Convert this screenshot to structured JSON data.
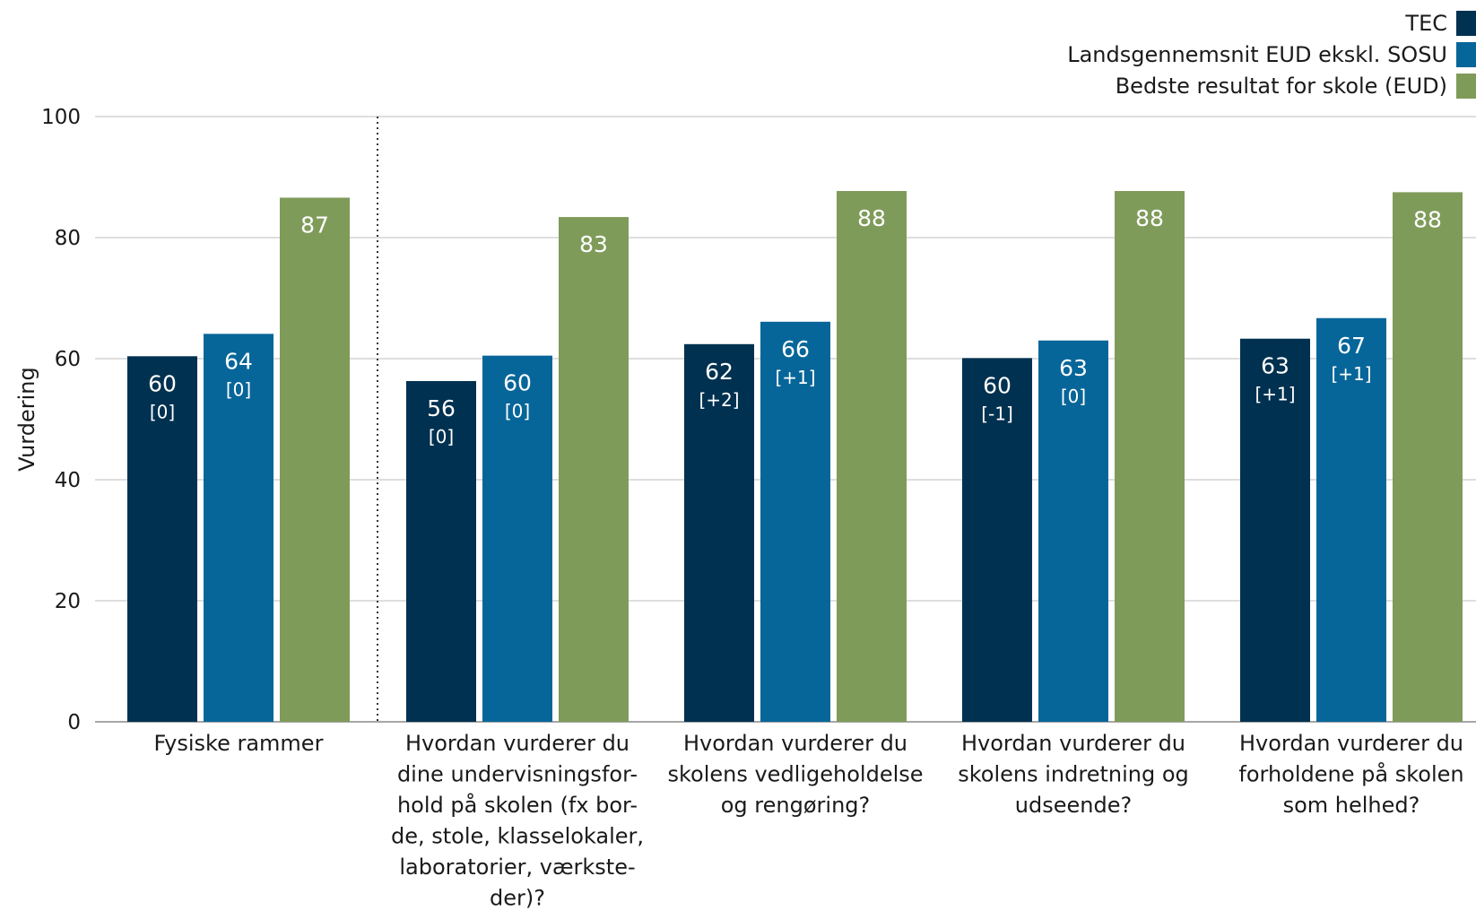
{
  "chart_data": {
    "type": "bar",
    "ylabel": "Vurdering",
    "ylim": [
      0,
      100
    ],
    "yticks": [
      0,
      20,
      40,
      60,
      80,
      100
    ],
    "grid": true,
    "legend_position": "top-right",
    "categories": [
      "Fysiske rammer",
      "Hvordan vurderer du dine undervisningsfor-hold på skolen (fx bor-de, stole, klasselokaler, laboratorier, værkste-der)?",
      "Hvordan vurderer du skolens vedligeholdelse og rengøring?",
      "Hvordan vurderer du skolens indretning og udseende?",
      "Hvordan vurderer du forholdene på skolen som helhed?"
    ],
    "category_lines": [
      [
        "Fysiske rammer"
      ],
      [
        "Hvordan vurderer du",
        "dine undervisningsfor-",
        "hold på skolen (fx bor-",
        "de, stole, klasselokaler,",
        "laboratorier, værkste-",
        "der)?"
      ],
      [
        "Hvordan vurderer du",
        "skolens vedligeholdelse",
        "og rengøring?"
      ],
      [
        "Hvordan vurderer du",
        "skolens indretning og",
        "udseende?"
      ],
      [
        "Hvordan vurderer du",
        "forholdene på skolen",
        "som helhed?"
      ]
    ],
    "series": [
      {
        "name": "TEC",
        "color": "#003150",
        "values": [
          60.4,
          56.3,
          62.4,
          60.1,
          63.3
        ],
        "labels": [
          "60",
          "56",
          "62",
          "60",
          "63"
        ],
        "changes": [
          "[0]",
          "[0]",
          "[+2]",
          "[-1]",
          "[+1]"
        ]
      },
      {
        "name": "Landsgennemsnit EUD ekskl. SOSU",
        "color": "#076699",
        "values": [
          64.1,
          60.5,
          66.1,
          63.0,
          66.7
        ],
        "labels": [
          "64",
          "60",
          "66",
          "63",
          "67"
        ],
        "changes": [
          "[0]",
          "[0]",
          "[+1]",
          "[0]",
          "[+1]"
        ]
      },
      {
        "name": "Bedste resultat for skole (EUD)",
        "color": "#7f9b5a",
        "values": [
          86.6,
          83.4,
          87.7,
          87.7,
          87.5
        ],
        "labels": [
          "87",
          "83",
          "88",
          "88",
          "88"
        ],
        "changes": [
          "",
          "",
          "",
          "",
          ""
        ]
      }
    ]
  }
}
